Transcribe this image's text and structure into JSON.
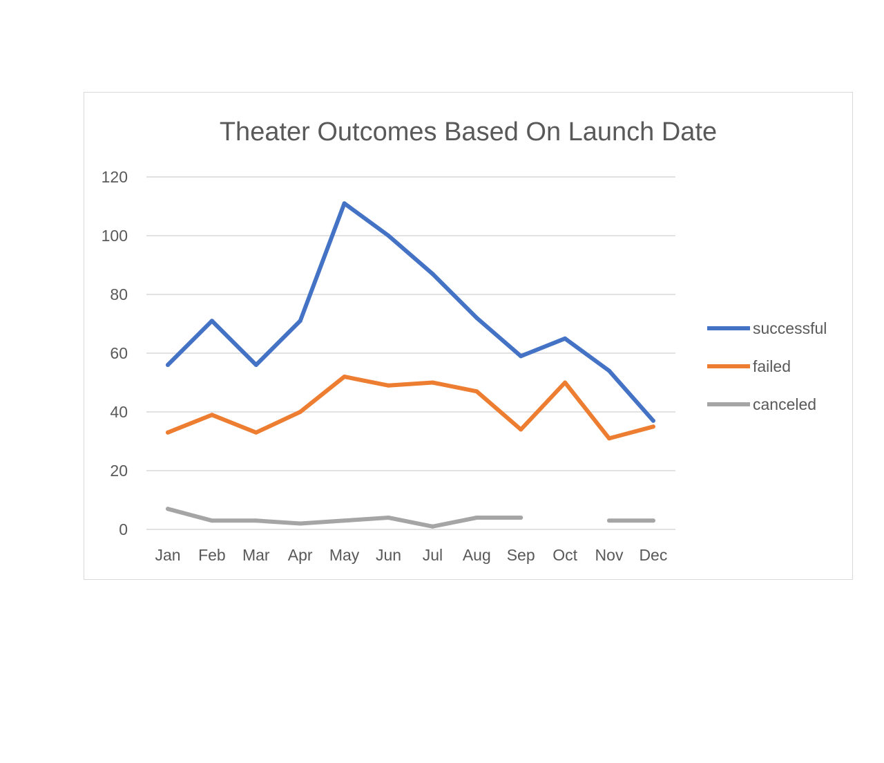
{
  "chart_data": {
    "type": "line",
    "title": "Theater Outcomes Based On Launch Date",
    "xlabel": "",
    "ylabel": "",
    "categories": [
      "Jan",
      "Feb",
      "Mar",
      "Apr",
      "May",
      "Jun",
      "Jul",
      "Aug",
      "Sep",
      "Oct",
      "Nov",
      "Dec"
    ],
    "ylim": [
      0,
      120
    ],
    "yticks": [
      0,
      20,
      40,
      60,
      80,
      100,
      120
    ],
    "grid": true,
    "legend_position": "right",
    "series": [
      {
        "name": "successful",
        "color": "#4472c4",
        "values": [
          56,
          71,
          56,
          71,
          111,
          100,
          87,
          72,
          59,
          65,
          54,
          37
        ]
      },
      {
        "name": "failed",
        "color": "#ed7d31",
        "values": [
          33,
          39,
          33,
          40,
          52,
          49,
          50,
          47,
          34,
          50,
          31,
          35
        ]
      },
      {
        "name": "canceled",
        "color": "#a5a5a5",
        "values": [
          7,
          3,
          3,
          2,
          3,
          4,
          1,
          4,
          4,
          null,
          3,
          3
        ]
      }
    ]
  }
}
